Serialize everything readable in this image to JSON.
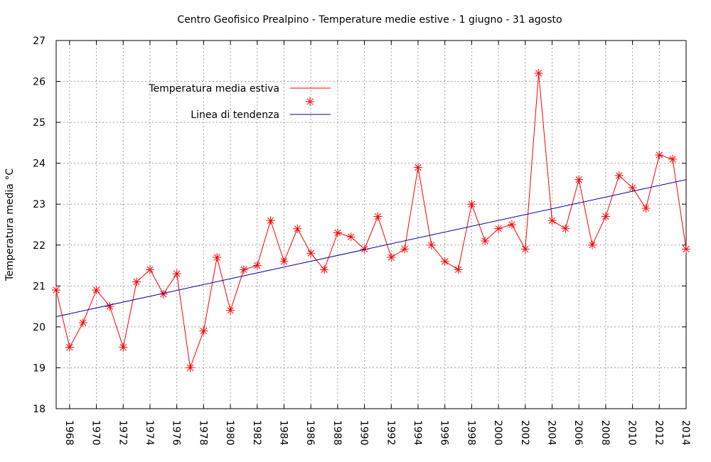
{
  "chart_data": {
    "type": "line",
    "title": "Centro Geofisico Prealpino - Temperature medie estive - 1 giugno - 31 agosto",
    "xlabel": "",
    "ylabel": "Temperatura media °C",
    "xlim": [
      1967,
      2014
    ],
    "ylim": [
      18,
      27
    ],
    "y_ticks": [
      18,
      19,
      20,
      21,
      22,
      23,
      24,
      25,
      26,
      27
    ],
    "x_ticks": [
      1968,
      1970,
      1972,
      1974,
      1976,
      1978,
      1980,
      1982,
      1984,
      1986,
      1988,
      1990,
      1992,
      1994,
      1996,
      1998,
      2000,
      2002,
      2004,
      2006,
      2008,
      2010,
      2012,
      2014
    ],
    "grid": true,
    "legend_position": "top-left",
    "series": [
      {
        "name": "Temperatura media estiva",
        "color": "#ff0000",
        "marker": "asterisk",
        "x": [
          1967,
          1968,
          1969,
          1970,
          1971,
          1972,
          1973,
          1974,
          1975,
          1976,
          1977,
          1978,
          1979,
          1980,
          1981,
          1982,
          1983,
          1984,
          1985,
          1986,
          1987,
          1988,
          1989,
          1990,
          1991,
          1992,
          1993,
          1994,
          1995,
          1996,
          1997,
          1998,
          1999,
          2000,
          2001,
          2002,
          2003,
          2004,
          2005,
          2006,
          2007,
          2008,
          2009,
          2010,
          2011,
          2012,
          2013,
          2014
        ],
        "values": [
          20.9,
          19.5,
          20.1,
          20.9,
          20.5,
          19.5,
          21.1,
          21.4,
          20.8,
          21.3,
          19.0,
          19.9,
          21.7,
          20.4,
          21.4,
          21.5,
          22.6,
          21.6,
          22.4,
          21.8,
          21.4,
          22.3,
          22.2,
          21.9,
          22.7,
          21.7,
          21.9,
          23.9,
          22.0,
          21.6,
          21.4,
          23.0,
          22.1,
          22.4,
          22.5,
          21.9,
          26.2,
          22.6,
          22.4,
          23.6,
          22.0,
          22.7,
          23.7,
          23.4,
          22.9,
          24.2,
          24.1,
          21.9
        ]
      },
      {
        "name": "Linea di tendenza",
        "color": "#0000a0",
        "x": [
          1967,
          2014
        ],
        "values": [
          20.25,
          23.6
        ]
      }
    ]
  }
}
